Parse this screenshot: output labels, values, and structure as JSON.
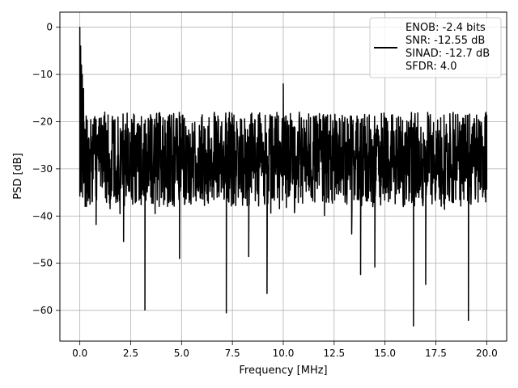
{
  "chart_data": {
    "type": "line",
    "title": "",
    "xlabel": "Frequency [MHz]",
    "ylabel": "PSD [dB]",
    "xlim": [
      -0.98,
      20.98
    ],
    "ylim": [
      -66.5,
      3.2
    ],
    "xticks": [
      0.0,
      2.5,
      5.0,
      7.5,
      10.0,
      12.5,
      15.0,
      17.5,
      20.0
    ],
    "xtick_labels": [
      "0.0",
      "2.5",
      "5.0",
      "7.5",
      "10.0",
      "12.5",
      "15.0",
      "17.5",
      "20.0"
    ],
    "yticks": [
      0,
      -10,
      -20,
      -30,
      -40,
      -50,
      -60
    ],
    "ytick_labels": [
      "0",
      "−10",
      "−20",
      "−30",
      "−40",
      "−50",
      "−60"
    ],
    "grid": true,
    "legend_position": "top-right",
    "legend": [
      "ENOB: -2.4 bits",
      "SNR: -12.55 dB",
      "SINAD: -12.7 dB",
      "SFDR: 4.0"
    ],
    "series": [
      {
        "color": "#000000",
        "x_range": [
          0.0,
          20.0
        ],
        "noise_floor_range": [
          -38,
          -18
        ],
        "points": [
          [
            0.0,
            0.0
          ],
          [
            0.02,
            -18.0
          ],
          [
            0.04,
            -4.0
          ],
          [
            0.06,
            -22.0
          ],
          [
            0.08,
            -8.0
          ],
          [
            0.1,
            -17.0
          ],
          [
            0.12,
            -10.0
          ],
          [
            0.15,
            -23.5
          ],
          [
            0.18,
            -13.0
          ],
          [
            0.2,
            -20.0
          ],
          [
            0.5,
            -37.5
          ],
          [
            0.8,
            -41.8
          ],
          [
            2.15,
            -45.4
          ],
          [
            3.2,
            -59.9
          ],
          [
            4.9,
            -49.0
          ],
          [
            7.2,
            -60.5
          ],
          [
            8.3,
            -48.6
          ],
          [
            9.2,
            -56.4
          ],
          [
            10.0,
            -12.0
          ],
          [
            13.8,
            -52.4
          ],
          [
            14.5,
            -50.8
          ],
          [
            16.4,
            -63.3
          ],
          [
            17.0,
            -54.5
          ],
          [
            19.1,
            -62.1
          ],
          [
            19.95,
            -37.0
          ],
          [
            20.0,
            -18.6
          ]
        ]
      }
    ]
  }
}
